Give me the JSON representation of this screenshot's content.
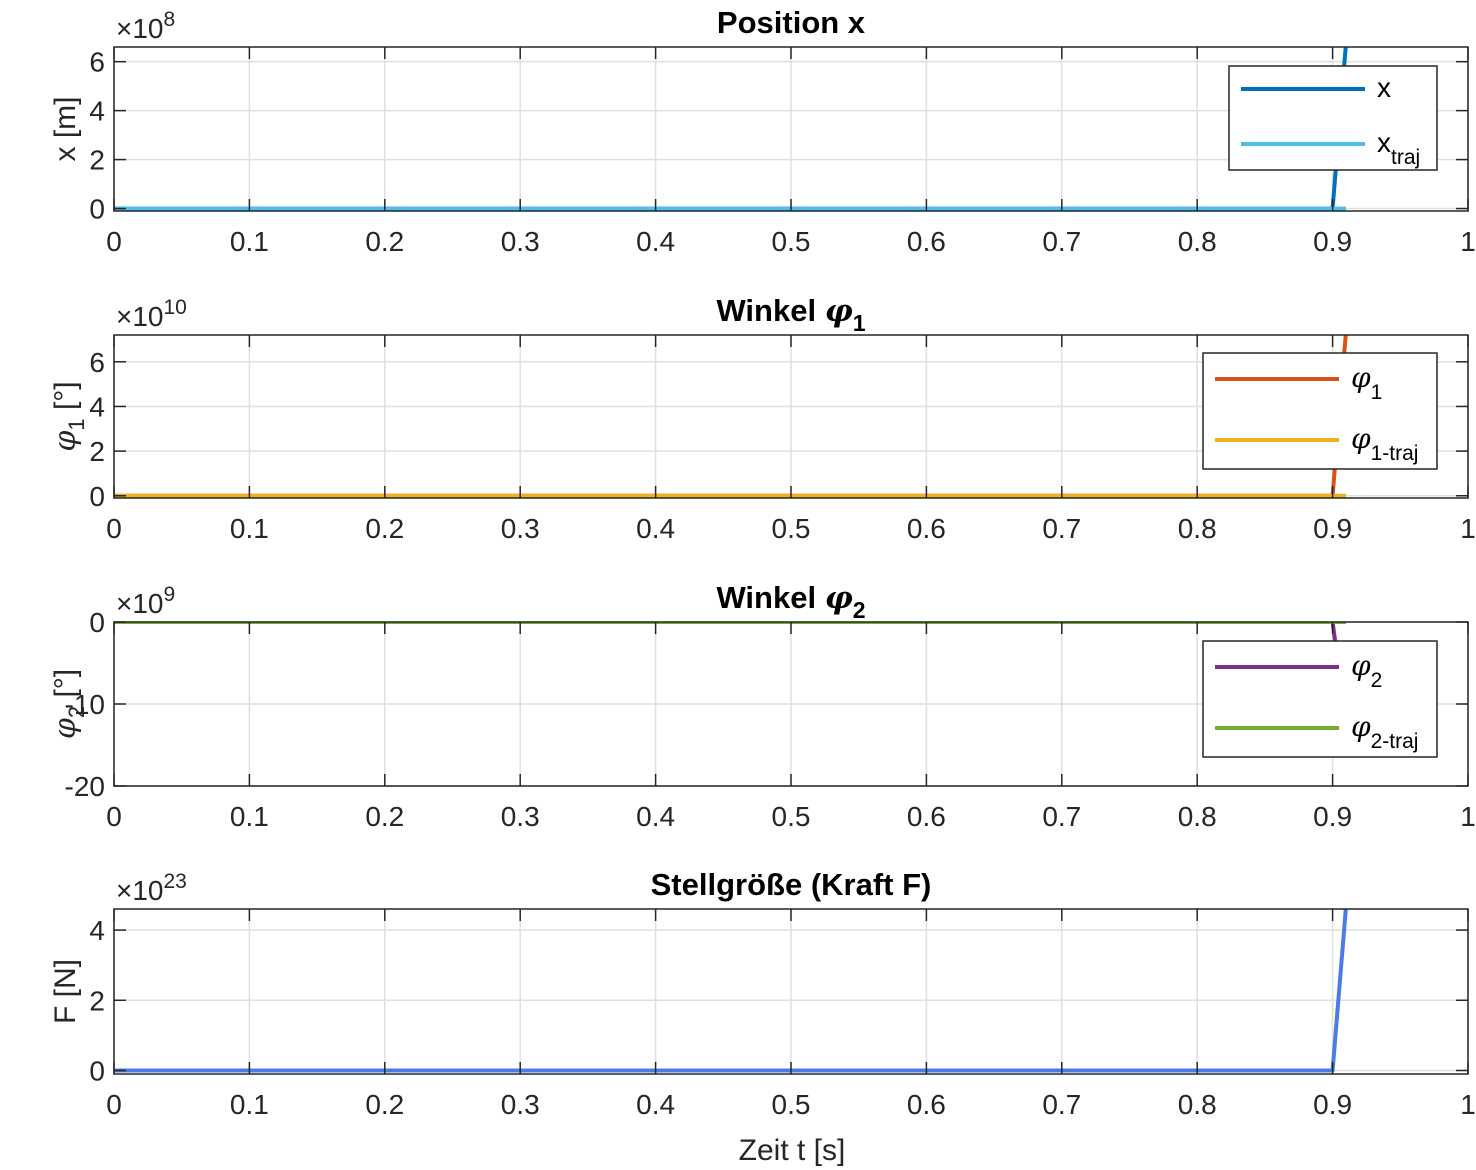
{
  "figure": {
    "xlabel": "Zeit t [s]"
  },
  "chart_data": [
    {
      "type": "line",
      "title": "Position x",
      "ylabel": "x [m]",
      "exponent": "8",
      "xlim": [
        0,
        1
      ],
      "ylim": [
        -0.1,
        6.6
      ],
      "xticks": [
        "0",
        "0.1",
        "0.2",
        "0.3",
        "0.4",
        "0.5",
        "0.6",
        "0.7",
        "0.8",
        "0.9",
        "1"
      ],
      "yticks": [
        "0",
        "2",
        "4",
        "6"
      ],
      "grid": true,
      "legend_position": "top-right",
      "series": [
        {
          "name": "x",
          "sub": "",
          "color": "#0072BD",
          "x": [
            0,
            0.9,
            0.91
          ],
          "y": [
            0,
            0,
            6.8
          ]
        },
        {
          "name": "x",
          "sub": "traj",
          "color": "#4DBEEE",
          "x": [
            0,
            0.91
          ],
          "y": [
            0,
            0
          ]
        }
      ]
    },
    {
      "type": "line",
      "title": "Winkel φ",
      "title_sub": "1",
      "ylabel": "φ",
      "ylabel_sub": "1",
      "ylabel_unit": " [°]",
      "exponent": "10",
      "xlim": [
        0,
        1
      ],
      "ylim": [
        -0.1,
        7.2
      ],
      "xticks": [
        "0",
        "0.1",
        "0.2",
        "0.3",
        "0.4",
        "0.5",
        "0.6",
        "0.7",
        "0.8",
        "0.9",
        "1"
      ],
      "yticks": [
        "0",
        "2",
        "4",
        "6"
      ],
      "grid": true,
      "legend_position": "top-right",
      "series": [
        {
          "name": "φ",
          "sub": "1",
          "color": "#D95319",
          "x": [
            0,
            0.9,
            0.91
          ],
          "y": [
            0,
            0,
            7.4
          ]
        },
        {
          "name": "φ",
          "sub": "1-traj",
          "color": "#EDB120",
          "x": [
            0,
            0.91
          ],
          "y": [
            0,
            0
          ]
        }
      ]
    },
    {
      "type": "line",
      "title": "Winkel φ",
      "title_sub": "2",
      "ylabel": "φ",
      "ylabel_sub": "2",
      "ylabel_unit": " [°]",
      "exponent": "9",
      "xlim": [
        0,
        1
      ],
      "ylim": [
        -20,
        0
      ],
      "xticks": [
        "0",
        "0.1",
        "0.2",
        "0.3",
        "0.4",
        "0.5",
        "0.6",
        "0.7",
        "0.8",
        "0.9",
        "1"
      ],
      "yticks": [
        "-20",
        "-10",
        "0"
      ],
      "grid": true,
      "legend_position": "top-right",
      "series": [
        {
          "name": "φ",
          "sub": "2",
          "color": "#7E2F8E",
          "x": [
            0,
            0.9,
            0.902
          ],
          "y": [
            0,
            0,
            -2.5
          ]
        },
        {
          "name": "φ",
          "sub": "2-traj",
          "color": "#77AC30",
          "x": [
            0,
            0.91
          ],
          "y": [
            0,
            0
          ]
        }
      ]
    },
    {
      "type": "line",
      "title": "Stellgröße (Kraft F)",
      "ylabel": "F [N]",
      "exponent": "23",
      "xlim": [
        0,
        1
      ],
      "ylim": [
        -0.1,
        4.6
      ],
      "xticks": [
        "0",
        "0.1",
        "0.2",
        "0.3",
        "0.4",
        "0.5",
        "0.6",
        "0.7",
        "0.8",
        "0.9",
        "1"
      ],
      "yticks": [
        "0",
        "2",
        "4"
      ],
      "grid": true,
      "legend_position": "none",
      "series": [
        {
          "name": "",
          "sub": "",
          "color": "#4A7BE8",
          "x": [
            0,
            0.9,
            0.91
          ],
          "y": [
            0,
            0,
            4.7
          ]
        }
      ]
    }
  ]
}
